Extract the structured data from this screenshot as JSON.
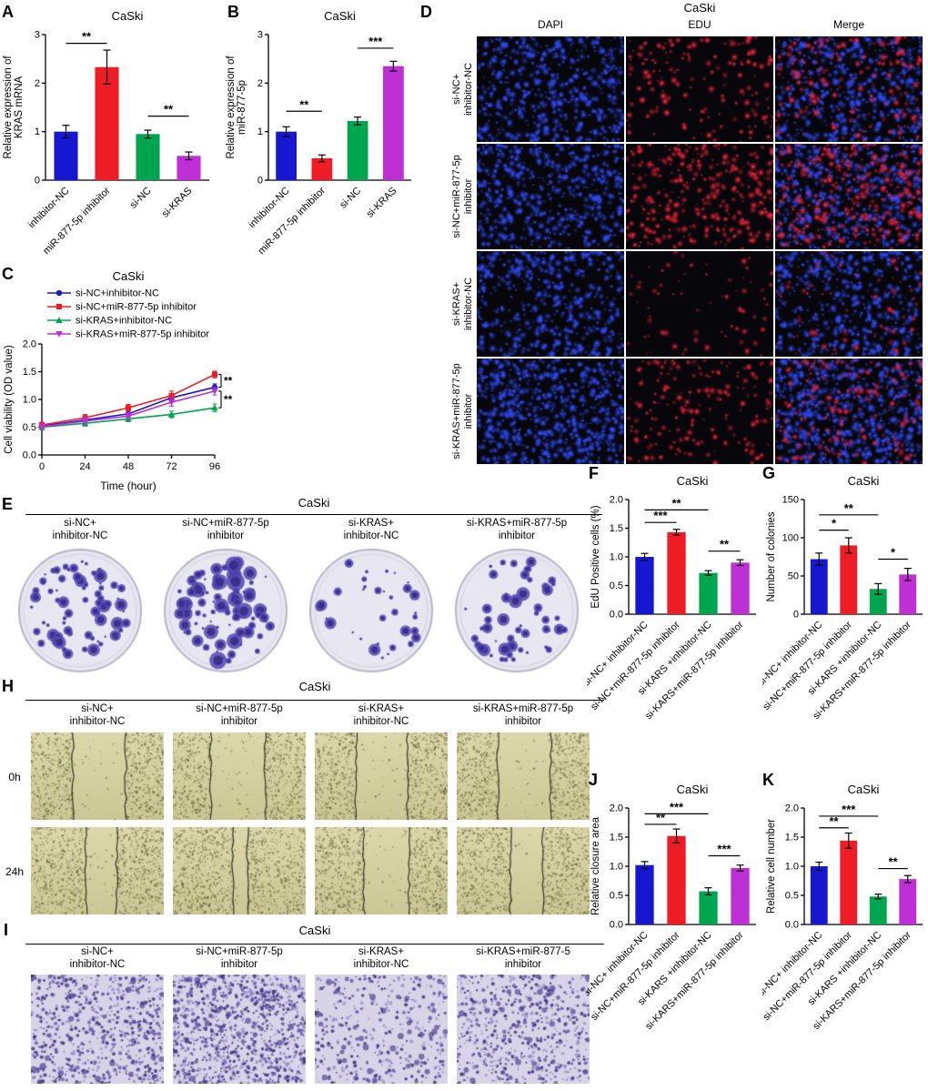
{
  "panels": {
    "A": {
      "letter": "A"
    },
    "B": {
      "letter": "B"
    },
    "C": {
      "letter": "C"
    },
    "D": {
      "letter": "D",
      "title": "CaSki",
      "columns": [
        "DAPI",
        "EDU",
        "Merge"
      ],
      "rows": [
        [
          "si-NC+",
          "inhibitor-NC"
        ],
        [
          "si-NC+miR-877-5p",
          "inhibitor"
        ],
        [
          "si-KRAS+",
          "inhibitor-NC"
        ],
        [
          "si-KRAS+miR-877-5p",
          "inhibitor"
        ]
      ]
    },
    "E": {
      "letter": "E",
      "title": "CaSki",
      "groups": [
        [
          "si-NC+",
          "inhibitor-NC"
        ],
        [
          "si-NC+miR-877-5p",
          "inhibitor"
        ],
        [
          "si-KRAS+",
          "inhibitor-NC"
        ],
        [
          "si-KRAS+miR-877-5p",
          "inhibitor"
        ]
      ]
    },
    "F": {
      "letter": "F"
    },
    "G": {
      "letter": "G"
    },
    "H": {
      "letter": "H",
      "title": "CaSki",
      "timepoints": [
        "0h",
        "24h"
      ],
      "groups": [
        [
          "si-NC+",
          "inhibitor-NC"
        ],
        [
          "si-NC+miR-877-5p",
          "inhibitor"
        ],
        [
          "si-KRAS+",
          "inhibitor-NC"
        ],
        [
          "si-KRAS+miR-877-5p",
          "inhibitor"
        ]
      ]
    },
    "I": {
      "letter": "I",
      "title": "CaSki",
      "groups": [
        [
          "si-NC+",
          "inhibitor-NC"
        ],
        [
          "si-NC+miR-877-5p",
          "inhibitor"
        ],
        [
          "si-KRAS+",
          "inhibitor-NC"
        ],
        [
          "si-KRAS+miR-877-5",
          "inhibitor"
        ]
      ]
    },
    "J": {
      "letter": "J"
    },
    "K": {
      "letter": "K"
    }
  },
  "colors": {
    "palette": [
      "#1717d1",
      "#ee1c25",
      "#00a64f",
      "#bf2fd6"
    ],
    "dapi_blue": "#2d4cf0",
    "edu_red": "#e6233c",
    "colony_purple": "#5246b0",
    "wound_background": "#d5d1a2",
    "transwell_background": "#d8d3e6"
  },
  "chart_data": [
    {
      "id": "A",
      "type": "bar",
      "title": "CaSki",
      "ylabel_lines": [
        "Relative expression of",
        "KRAS mRNA"
      ],
      "categories": [
        "inhibitor-NC",
        "miR-877-5p inhibitor",
        "si-NC",
        "si-KRAS"
      ],
      "values": [
        1.0,
        2.33,
        0.95,
        0.5
      ],
      "errors": [
        0.13,
        0.35,
        0.08,
        0.08
      ],
      "ylim": [
        0,
        3
      ],
      "yticks": [
        0,
        1,
        2,
        3
      ],
      "ytick_decimals": 0,
      "grid": false,
      "legend": "none",
      "annotations": [
        {
          "i1": 0,
          "i2": 1,
          "y": 2.82,
          "label": "**"
        },
        {
          "i1": 2,
          "i2": 3,
          "y": 1.32,
          "label": "**"
        }
      ]
    },
    {
      "id": "B",
      "type": "bar",
      "title": "CaSki",
      "ylabel_lines": [
        "Relative expression of",
        "miR-877-5p"
      ],
      "categories": [
        "inhibitor-NC",
        "miR-877-5p inhibitor",
        "si-NC",
        "si-KRAS"
      ],
      "values": [
        1.0,
        0.45,
        1.22,
        2.35
      ],
      "errors": [
        0.1,
        0.07,
        0.08,
        0.1
      ],
      "ylim": [
        0,
        3
      ],
      "yticks": [
        0,
        1,
        2,
        3
      ],
      "ytick_decimals": 0,
      "grid": false,
      "legend": "none",
      "annotations": [
        {
          "i1": 0,
          "i2": 1,
          "y": 1.42,
          "label": "**"
        },
        {
          "i1": 2,
          "i2": 3,
          "y": 2.72,
          "label": "***"
        }
      ]
    },
    {
      "id": "C",
      "type": "line",
      "title": "CaSki",
      "ylabel_lines": [
        "Cell viability (OD value)"
      ],
      "xlabel": "Time (hour)",
      "x": [
        0,
        24,
        48,
        72,
        96
      ],
      "xticks": [
        0,
        24,
        48,
        72,
        96
      ],
      "ylim": [
        0,
        2
      ],
      "yticks": [
        0,
        0.5,
        1,
        1.5,
        2
      ],
      "ytick_decimals": 1,
      "grid": false,
      "legend": "top-left",
      "series": [
        {
          "name": "si-NC+inhibitor-NC",
          "color": "#1717d1",
          "marker": "circle",
          "values": [
            0.52,
            0.63,
            0.74,
            1.03,
            1.22
          ],
          "errors": [
            0.05,
            0.05,
            0.06,
            0.07,
            0.06
          ]
        },
        {
          "name": "si-NC+miR-877-5p inhibitor",
          "color": "#ee1c25",
          "marker": "square",
          "values": [
            0.54,
            0.67,
            0.85,
            1.07,
            1.45
          ],
          "errors": [
            0.05,
            0.06,
            0.06,
            0.08,
            0.06
          ]
        },
        {
          "name": "si-KRAS+inhibitor-NC",
          "color": "#00a64f",
          "marker": "triangle",
          "values": [
            0.5,
            0.57,
            0.65,
            0.73,
            0.85
          ],
          "errors": [
            0.05,
            0.05,
            0.05,
            0.06,
            0.07
          ]
        },
        {
          "name": "si-KRAS+miR-877-5p inhibitor",
          "color": "#bf2fd6",
          "marker": "triangle-down",
          "values": [
            0.51,
            0.61,
            0.7,
            0.95,
            1.15
          ],
          "errors": [
            0.05,
            0.06,
            0.06,
            0.07,
            0.07
          ]
        }
      ],
      "brackets": [
        {
          "y1": 1.45,
          "y2": 1.22,
          "label": "**"
        },
        {
          "y1": 1.15,
          "y2": 0.85,
          "label": "**"
        }
      ]
    },
    {
      "id": "F",
      "type": "bar",
      "title": "CaSki",
      "ylabel_lines": [
        "EdU Positive cells (%)"
      ],
      "categories": [
        "si-NC+ inhibitor-NC",
        "si-NC+miR-877-5p inhibitor",
        "si-KARS +inhibitor-NC",
        "si-KARS+miR-877-5p inhibitor"
      ],
      "values": [
        1.0,
        1.43,
        0.72,
        0.9
      ],
      "errors": [
        0.06,
        0.05,
        0.04,
        0.05
      ],
      "ylim": [
        0,
        2
      ],
      "yticks": [
        0,
        0.5,
        1,
        1.5,
        2
      ],
      "ytick_decimals": 1,
      "grid": false,
      "legend": "none",
      "annotations": [
        {
          "i1": 0,
          "i2": 1,
          "y": 1.6,
          "label": "***"
        },
        {
          "i1": 0,
          "i2": 2,
          "y": 1.82,
          "label": "**"
        },
        {
          "i1": 2,
          "i2": 3,
          "y": 1.1,
          "label": "**"
        }
      ]
    },
    {
      "id": "G",
      "type": "bar",
      "title": "CaSki",
      "ylabel_lines": [
        "Number of colonies"
      ],
      "categories": [
        "si-NC+ inhibitor-NC",
        "si-NC+miR-877-5p inhibitor",
        "si-KARS +inhibitor-NC",
        "si-KARS+miR-877-5p inhibitor"
      ],
      "values": [
        72,
        90,
        33,
        52
      ],
      "errors": [
        8,
        10,
        7,
        8
      ],
      "ylim": [
        0,
        150
      ],
      "yticks": [
        0,
        50,
        100,
        150
      ],
      "ytick_decimals": 0,
      "grid": false,
      "legend": "none",
      "annotations": [
        {
          "i1": 0,
          "i2": 1,
          "y": 110,
          "label": "*"
        },
        {
          "i1": 0,
          "i2": 2,
          "y": 130,
          "label": "**"
        },
        {
          "i1": 2,
          "i2": 3,
          "y": 72,
          "label": "*"
        }
      ]
    },
    {
      "id": "J",
      "type": "bar",
      "title": "CaSki",
      "ylabel_lines": [
        "Relative closure area"
      ],
      "categories": [
        "si-NC+ inhibitor-NC",
        "si-NC+miR-877-5p inhibitor",
        "si-KARS +inhibitor-NC",
        "si-KARS+miR-877-5p inhibitor"
      ],
      "values": [
        1.02,
        1.52,
        0.57,
        0.97
      ],
      "errors": [
        0.06,
        0.12,
        0.06,
        0.05
      ],
      "ylim": [
        0,
        2
      ],
      "yticks": [
        0,
        0.5,
        1,
        1.5,
        2
      ],
      "ytick_decimals": 1,
      "grid": false,
      "legend": "none",
      "annotations": [
        {
          "i1": 0,
          "i2": 1,
          "y": 1.72,
          "label": "**"
        },
        {
          "i1": 0,
          "i2": 2,
          "y": 1.9,
          "label": "***"
        },
        {
          "i1": 2,
          "i2": 3,
          "y": 1.18,
          "label": "***"
        }
      ]
    },
    {
      "id": "K",
      "type": "bar",
      "title": "CaSki",
      "ylabel_lines": [
        "Relative cell number"
      ],
      "categories": [
        "si-NC+ inhibitor-NC",
        "si-NC+miR-877-5p inhibitor",
        "si-KARS +inhibitor-NC",
        "si-KARS+miR-877-5p inhibitor"
      ],
      "values": [
        1.0,
        1.44,
        0.48,
        0.78
      ],
      "errors": [
        0.07,
        0.13,
        0.04,
        0.06
      ],
      "ylim": [
        0,
        2
      ],
      "yticks": [
        0,
        0.5,
        1,
        1.5,
        2
      ],
      "ytick_decimals": 1,
      "grid": false,
      "legend": "none",
      "annotations": [
        {
          "i1": 0,
          "i2": 1,
          "y": 1.66,
          "label": "**"
        },
        {
          "i1": 0,
          "i2": 2,
          "y": 1.86,
          "label": "***"
        },
        {
          "i1": 2,
          "i2": 3,
          "y": 0.96,
          "label": "**"
        }
      ]
    }
  ]
}
